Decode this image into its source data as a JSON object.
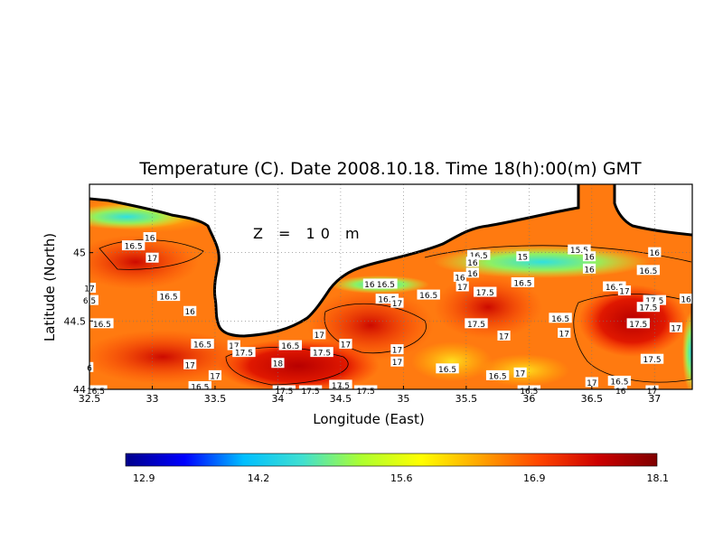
{
  "chart_data": {
    "type": "heatmap",
    "title": "Temperature (C). Date 2008.10.18. Time 18(h):00(m) GMT",
    "xlabel": "Longitude (East)",
    "ylabel": "Latitude (North)",
    "annotation": "Z = 10 m",
    "xlim": [
      32.5,
      37.3
    ],
    "ylim": [
      44.0,
      45.5
    ],
    "x_ticks": [
      "32.5",
      "33",
      "33.5",
      "34",
      "34.5",
      "35",
      "35.5",
      "36",
      "36.5",
      "37"
    ],
    "x_tick_values": [
      32.5,
      33,
      33.5,
      34,
      34.5,
      35,
      35.5,
      36,
      36.5,
      37
    ],
    "y_ticks": [
      "44",
      "44.5",
      "45"
    ],
    "y_tick_values": [
      44,
      44.5,
      45
    ],
    "grid": true,
    "colorbar": {
      "min": 12.9,
      "max": 18.1,
      "tick_labels": [
        "12.9",
        "14.2",
        "15.6",
        "16.9",
        "18.1"
      ],
      "tick_values": [
        12.9,
        14.2,
        15.6,
        16.9,
        18.1
      ],
      "colors": [
        "#00008b",
        "#0000ff",
        "#00bfff",
        "#40e0d0",
        "#adff2f",
        "#ffff00",
        "#ffa500",
        "#ff4500",
        "#cc0000",
        "#800000"
      ]
    },
    "land_color": "#ffffff",
    "coastline_color": "#000000",
    "contour_labels": [
      {
        "text": "16",
        "lon": 32.98,
        "lat": 45.11
      },
      {
        "text": "16.5",
        "lon": 32.85,
        "lat": 45.05
      },
      {
        "text": "17",
        "lon": 33.0,
        "lat": 44.96
      },
      {
        "text": "17",
        "lon": 32.5,
        "lat": 44.74
      },
      {
        "text": "16.5",
        "lon": 33.13,
        "lat": 44.68
      },
      {
        "text": "6.5",
        "lon": 32.5,
        "lat": 44.65
      },
      {
        "text": "16",
        "lon": 33.3,
        "lat": 44.57
      },
      {
        "text": "16.5",
        "lon": 32.6,
        "lat": 44.48
      },
      {
        "text": "16.5",
        "lon": 33.4,
        "lat": 44.33
      },
      {
        "text": "17",
        "lon": 33.3,
        "lat": 44.18
      },
      {
        "text": "6",
        "lon": 32.5,
        "lat": 44.16
      },
      {
        "text": "17",
        "lon": 33.5,
        "lat": 44.1
      },
      {
        "text": "16.5",
        "lon": 33.38,
        "lat": 44.02
      },
      {
        "text": "16.5",
        "lon": 32.55,
        "lat": 43.99
      },
      {
        "text": "17",
        "lon": 33.65,
        "lat": 44.32
      },
      {
        "text": "17.5",
        "lon": 33.73,
        "lat": 44.27
      },
      {
        "text": "16.5",
        "lon": 34.1,
        "lat": 44.32
      },
      {
        "text": "17",
        "lon": 34.33,
        "lat": 44.4
      },
      {
        "text": "17.5",
        "lon": 34.35,
        "lat": 44.27
      },
      {
        "text": "17",
        "lon": 34.54,
        "lat": 44.33
      },
      {
        "text": "18",
        "lon": 34.0,
        "lat": 44.19
      },
      {
        "text": "17.5",
        "lon": 34.05,
        "lat": 43.99
      },
      {
        "text": "17.5",
        "lon": 34.26,
        "lat": 43.99
      },
      {
        "text": "17.5",
        "lon": 34.5,
        "lat": 44.03
      },
      {
        "text": "17.5",
        "lon": 34.7,
        "lat": 43.99
      },
      {
        "text": "16",
        "lon": 34.73,
        "lat": 44.77
      },
      {
        "text": "16.5",
        "lon": 34.86,
        "lat": 44.77
      },
      {
        "text": "16.5",
        "lon": 34.87,
        "lat": 44.66
      },
      {
        "text": "17",
        "lon": 34.95,
        "lat": 44.63
      },
      {
        "text": "16.5",
        "lon": 35.2,
        "lat": 44.69
      },
      {
        "text": "17",
        "lon": 34.95,
        "lat": 44.29
      },
      {
        "text": "17",
        "lon": 34.95,
        "lat": 44.2
      },
      {
        "text": "16.5",
        "lon": 35.35,
        "lat": 44.15
      },
      {
        "text": "17",
        "lon": 35.47,
        "lat": 44.75
      },
      {
        "text": "17.5",
        "lon": 35.65,
        "lat": 44.71
      },
      {
        "text": "17.5",
        "lon": 35.58,
        "lat": 44.48
      },
      {
        "text": "17",
        "lon": 35.8,
        "lat": 44.39
      },
      {
        "text": "16.5",
        "lon": 35.95,
        "lat": 44.78
      },
      {
        "text": "16.5",
        "lon": 35.75,
        "lat": 44.1
      },
      {
        "text": "17",
        "lon": 35.93,
        "lat": 44.12
      },
      {
        "text": "16.5",
        "lon": 36.0,
        "lat": 43.99
      },
      {
        "text": "16",
        "lon": 35.55,
        "lat": 44.85
      },
      {
        "text": "16",
        "lon": 35.45,
        "lat": 44.82
      },
      {
        "text": "16.5",
        "lon": 35.6,
        "lat": 44.98
      },
      {
        "text": "16",
        "lon": 35.55,
        "lat": 44.93
      },
      {
        "text": "15",
        "lon": 35.95,
        "lat": 44.97
      },
      {
        "text": "15.5",
        "lon": 36.4,
        "lat": 45.02
      },
      {
        "text": "16",
        "lon": 36.48,
        "lat": 44.97
      },
      {
        "text": "16",
        "lon": 36.48,
        "lat": 44.88
      },
      {
        "text": "16.5",
        "lon": 36.68,
        "lat": 44.75
      },
      {
        "text": "17",
        "lon": 36.76,
        "lat": 44.72
      },
      {
        "text": "16",
        "lon": 37.0,
        "lat": 45.0
      },
      {
        "text": "16.5",
        "lon": 36.95,
        "lat": 44.87
      },
      {
        "text": "16.5",
        "lon": 36.25,
        "lat": 44.52
      },
      {
        "text": "17",
        "lon": 36.28,
        "lat": 44.41
      },
      {
        "text": "17.5",
        "lon": 37.0,
        "lat": 44.65
      },
      {
        "text": "17.5",
        "lon": 36.95,
        "lat": 44.6
      },
      {
        "text": "17.5",
        "lon": 36.87,
        "lat": 44.48
      },
      {
        "text": "17",
        "lon": 37.17,
        "lat": 44.45
      },
      {
        "text": "16",
        "lon": 37.25,
        "lat": 44.66
      },
      {
        "text": "17.5",
        "lon": 36.98,
        "lat": 44.22
      },
      {
        "text": "17",
        "lon": 36.5,
        "lat": 44.05
      },
      {
        "text": "16.5",
        "lon": 36.72,
        "lat": 44.06
      },
      {
        "text": "16",
        "lon": 36.73,
        "lat": 43.99
      },
      {
        "text": "17",
        "lon": 36.98,
        "lat": 43.99
      }
    ]
  }
}
